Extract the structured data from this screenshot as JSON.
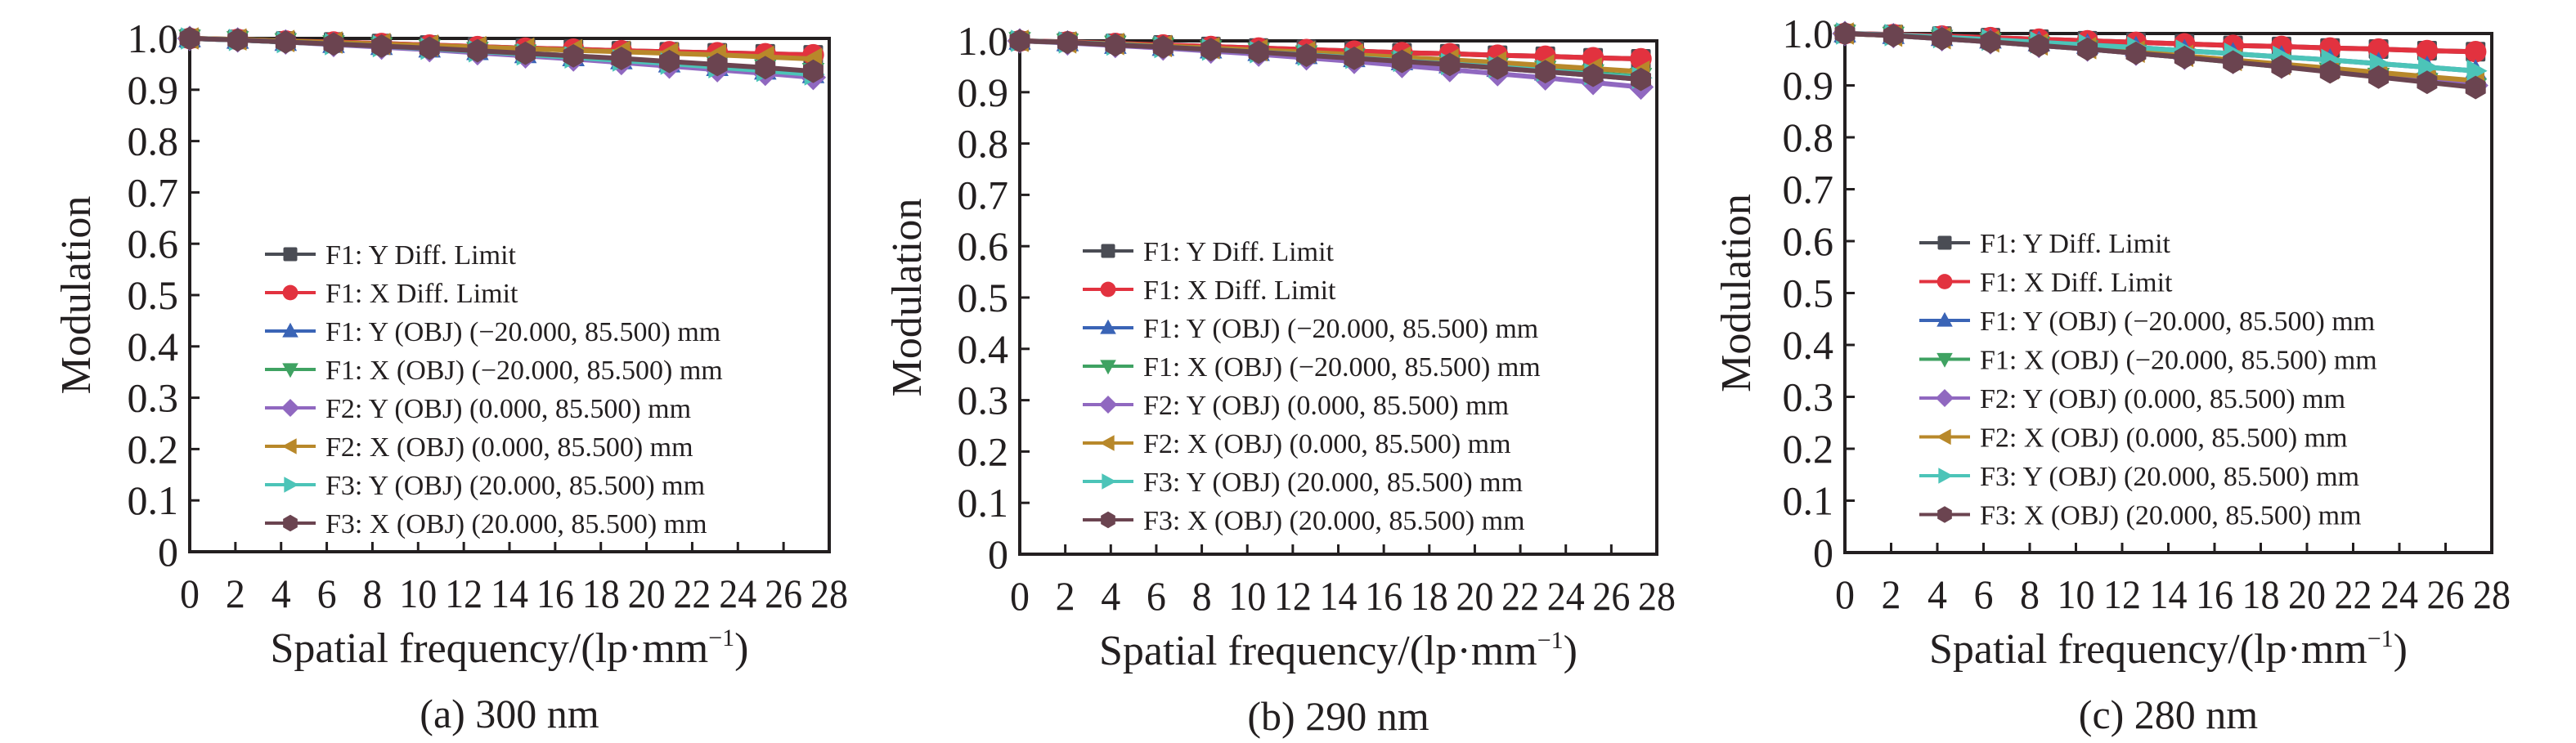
{
  "colors": {
    "F1: Y Diff. Limit": "#4a4c54",
    "F1: X Diff. Limit": "#e2323f",
    "F1: Y (OBJ) (−20.000, 85.500) mm": "#3a64b6",
    "F1: X (OBJ) (−20.000, 85.500) mm": "#3fa262",
    "F2: Y (OBJ) (0.000, 85.500) mm": "#9068c0",
    "F2: X (OBJ) (0.000, 85.500) mm": "#b8882a",
    "F3: Y (OBJ) (20.000, 85.500) mm": "#4cc4b8",
    "F3: X (OBJ) (20.000, 85.500) mm": "#6b4450"
  },
  "markers": [
    "square",
    "circle",
    "triangle-up",
    "triangle-down",
    "diamond",
    "triangle-left",
    "triangle-right",
    "hexagon"
  ],
  "chart_data": [
    {
      "type": "line",
      "caption": "(a) 300 nm",
      "xlabel": "Spatial frequency/(lp·mm",
      "xlabel_sup": "−1",
      "xlabel_close": ")",
      "ylabel": "Modulation",
      "xlim": [
        0,
        28
      ],
      "ylim": [
        0,
        1.0
      ],
      "xticks": [
        "0",
        "2",
        "4",
        "6",
        "8",
        "10",
        "12",
        "14",
        "16",
        "18",
        "20",
        "22",
        "24",
        "26",
        "28"
      ],
      "yticks": [
        "0",
        "0.1",
        "0.2",
        "0.3",
        "0.4",
        "0.5",
        "0.6",
        "0.7",
        "0.8",
        "0.9",
        "1.0"
      ],
      "legend_position": "lower-center",
      "x": [
        0,
        2.1,
        4.2,
        6.3,
        8.4,
        10.5,
        12.6,
        14.7,
        16.8,
        18.9,
        21.0,
        23.1,
        25.2,
        27.3
      ],
      "series": [
        {
          "name": "F1: Y Diff. Limit",
          "values": [
            1.0,
            0.998,
            0.995,
            0.993,
            0.99,
            0.987,
            0.984,
            0.981,
            0.979,
            0.976,
            0.974,
            0.972,
            0.97,
            0.968
          ]
        },
        {
          "name": "F1: X Diff. Limit",
          "values": [
            1.0,
            0.998,
            0.995,
            0.993,
            0.99,
            0.987,
            0.984,
            0.981,
            0.979,
            0.976,
            0.974,
            0.972,
            0.97,
            0.968
          ]
        },
        {
          "name": "F1: Y (OBJ) (−20.000, 85.500) mm",
          "values": [
            1.0,
            0.997,
            0.993,
            0.989,
            0.985,
            0.98,
            0.975,
            0.969,
            0.963,
            0.957,
            0.951,
            0.944,
            0.937,
            0.93
          ]
        },
        {
          "name": "F1: X (OBJ) (−20.000, 85.500) mm",
          "values": [
            1.0,
            0.997,
            0.993,
            0.989,
            0.985,
            0.981,
            0.976,
            0.971,
            0.966,
            0.96,
            0.954,
            0.948,
            0.942,
            0.935
          ]
        },
        {
          "name": "F2: Y (OBJ) (0.000, 85.500) mm",
          "values": [
            1.0,
            0.997,
            0.993,
            0.988,
            0.983,
            0.978,
            0.972,
            0.966,
            0.96,
            0.953,
            0.946,
            0.939,
            0.932,
            0.924
          ]
        },
        {
          "name": "F2: X (OBJ) (0.000, 85.500) mm",
          "values": [
            1.0,
            0.998,
            0.995,
            0.992,
            0.989,
            0.986,
            0.983,
            0.98,
            0.977,
            0.974,
            0.971,
            0.968,
            0.964,
            0.96
          ]
        },
        {
          "name": "F3: Y (OBJ) (20.000, 85.500) mm",
          "values": [
            1.0,
            0.997,
            0.993,
            0.989,
            0.985,
            0.98,
            0.975,
            0.969,
            0.963,
            0.957,
            0.951,
            0.944,
            0.937,
            0.93
          ]
        },
        {
          "name": "F3: X (OBJ) (20.000, 85.500) mm",
          "values": [
            1.0,
            0.997,
            0.993,
            0.989,
            0.985,
            0.981,
            0.976,
            0.971,
            0.966,
            0.961,
            0.955,
            0.949,
            0.943,
            0.936
          ]
        }
      ]
    },
    {
      "type": "line",
      "caption": "(b) 290 nm",
      "xlabel": "Spatial frequency/(lp·mm",
      "xlabel_sup": "−1",
      "xlabel_close": ")",
      "ylabel": "Modulation",
      "xlim": [
        0,
        28
      ],
      "ylim": [
        0,
        1.0
      ],
      "xticks": [
        "0",
        "2",
        "4",
        "6",
        "8",
        "10",
        "12",
        "14",
        "16",
        "18",
        "20",
        "22",
        "24",
        "26",
        "28"
      ],
      "yticks": [
        "0",
        "0.1",
        "0.2",
        "0.3",
        "0.4",
        "0.5",
        "0.6",
        "0.7",
        "0.8",
        "0.9",
        "1.0"
      ],
      "legend_position": "lower-center",
      "x": [
        0,
        2.1,
        4.2,
        6.3,
        8.4,
        10.5,
        12.6,
        14.7,
        16.8,
        18.9,
        21.0,
        23.1,
        25.2,
        27.3
      ],
      "series": [
        {
          "name": "F1: Y Diff. Limit",
          "values": [
            1.0,
            0.998,
            0.995,
            0.992,
            0.989,
            0.986,
            0.983,
            0.98,
            0.977,
            0.975,
            0.972,
            0.97,
            0.967,
            0.965
          ]
        },
        {
          "name": "F1: X Diff. Limit",
          "values": [
            1.0,
            0.998,
            0.995,
            0.992,
            0.989,
            0.986,
            0.983,
            0.98,
            0.977,
            0.975,
            0.972,
            0.97,
            0.967,
            0.965
          ]
        },
        {
          "name": "F1: Y (OBJ) (−20.000, 85.500) mm",
          "values": [
            1.0,
            0.997,
            0.992,
            0.988,
            0.983,
            0.978,
            0.972,
            0.966,
            0.96,
            0.954,
            0.947,
            0.94,
            0.933,
            0.925
          ]
        },
        {
          "name": "F1: X (OBJ) (−20.000, 85.500) mm",
          "values": [
            1.0,
            0.997,
            0.993,
            0.989,
            0.984,
            0.979,
            0.974,
            0.968,
            0.962,
            0.956,
            0.95,
            0.944,
            0.937,
            0.93
          ]
        },
        {
          "name": "F2: Y (OBJ) (0.000, 85.500) mm",
          "values": [
            1.0,
            0.996,
            0.991,
            0.986,
            0.98,
            0.974,
            0.967,
            0.96,
            0.952,
            0.944,
            0.936,
            0.928,
            0.919,
            0.91
          ]
        },
        {
          "name": "F2: X (OBJ) (0.000, 85.500) mm",
          "values": [
            1.0,
            0.997,
            0.994,
            0.99,
            0.986,
            0.982,
            0.978,
            0.973,
            0.968,
            0.963,
            0.958,
            0.952,
            0.946,
            0.94
          ]
        },
        {
          "name": "F3: Y (OBJ) (20.000, 85.500) mm",
          "values": [
            1.0,
            0.997,
            0.993,
            0.988,
            0.983,
            0.978,
            0.973,
            0.967,
            0.961,
            0.955,
            0.949,
            0.942,
            0.935,
            0.928
          ]
        },
        {
          "name": "F3: X (OBJ) (20.000, 85.500) mm",
          "values": [
            1.0,
            0.997,
            0.992,
            0.988,
            0.983,
            0.978,
            0.972,
            0.966,
            0.96,
            0.954,
            0.947,
            0.94,
            0.933,
            0.925
          ]
        }
      ]
    },
    {
      "type": "line",
      "caption": "(c) 280 nm",
      "xlabel": "Spatial frequency/(lp·mm",
      "xlabel_sup": "−1",
      "xlabel_close": ")",
      "ylabel": "Modulation",
      "xlim": [
        0,
        28
      ],
      "ylim": [
        0,
        1.0
      ],
      "xticks": [
        "0",
        "2",
        "4",
        "6",
        "8",
        "10",
        "12",
        "14",
        "16",
        "18",
        "20",
        "22",
        "24",
        "26",
        "28"
      ],
      "yticks": [
        "0",
        "0.1",
        "0.2",
        "0.3",
        "0.4",
        "0.5",
        "0.6",
        "0.7",
        "0.8",
        "0.9",
        "1.0"
      ],
      "legend_position": "lower-center",
      "x": [
        0,
        2.1,
        4.2,
        6.3,
        8.4,
        10.5,
        12.6,
        14.7,
        16.8,
        18.9,
        21.0,
        23.1,
        25.2,
        27.3
      ],
      "series": [
        {
          "name": "F1: Y Diff. Limit",
          "values": [
            1.0,
            0.998,
            0.995,
            0.992,
            0.989,
            0.986,
            0.983,
            0.98,
            0.977,
            0.975,
            0.972,
            0.97,
            0.967,
            0.965
          ]
        },
        {
          "name": "F1: X Diff. Limit",
          "values": [
            1.0,
            0.998,
            0.995,
            0.992,
            0.989,
            0.986,
            0.983,
            0.98,
            0.977,
            0.975,
            0.972,
            0.97,
            0.967,
            0.965
          ]
        },
        {
          "name": "F1: Y (OBJ) (−20.000, 85.500) mm",
          "values": [
            1.0,
            0.997,
            0.993,
            0.988,
            0.983,
            0.978,
            0.973,
            0.967,
            0.961,
            0.955,
            0.949,
            0.942,
            0.935,
            0.928
          ]
        },
        {
          "name": "F1: X (OBJ) (−20.000, 85.500) mm",
          "values": [
            1.0,
            0.996,
            0.99,
            0.984,
            0.977,
            0.97,
            0.962,
            0.954,
            0.945,
            0.936,
            0.927,
            0.917,
            0.907,
            0.897
          ]
        },
        {
          "name": "F2: Y (OBJ) (0.000, 85.500) mm",
          "values": [
            1.0,
            0.996,
            0.99,
            0.984,
            0.977,
            0.97,
            0.962,
            0.954,
            0.946,
            0.937,
            0.929,
            0.919,
            0.91,
            0.9
          ]
        },
        {
          "name": "F2: X (OBJ) (0.000, 85.500) mm",
          "values": [
            1.0,
            0.996,
            0.991,
            0.985,
            0.979,
            0.972,
            0.965,
            0.957,
            0.949,
            0.941,
            0.933,
            0.925,
            0.917,
            0.909
          ]
        },
        {
          "name": "F3: Y (OBJ) (20.000, 85.500) mm",
          "values": [
            1.0,
            0.997,
            0.993,
            0.988,
            0.983,
            0.978,
            0.973,
            0.967,
            0.961,
            0.955,
            0.949,
            0.942,
            0.935,
            0.928
          ]
        },
        {
          "name": "F3: X (OBJ) (20.000, 85.500) mm",
          "values": [
            1.0,
            0.996,
            0.99,
            0.984,
            0.977,
            0.97,
            0.962,
            0.954,
            0.945,
            0.936,
            0.926,
            0.916,
            0.906,
            0.896
          ]
        }
      ]
    }
  ]
}
